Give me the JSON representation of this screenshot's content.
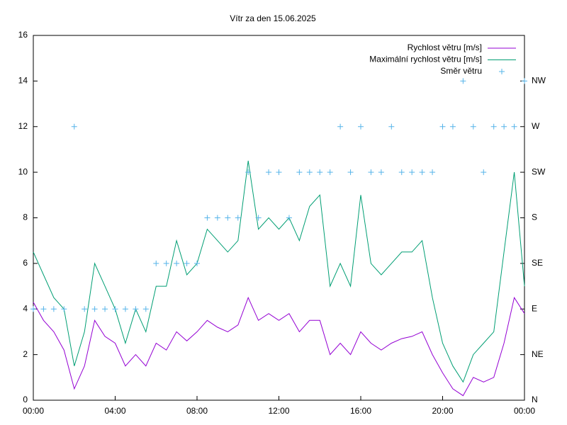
{
  "chart_data": {
    "type": "line",
    "title": "Vítr za den 15.06.2025",
    "x": [
      0,
      0.5,
      1,
      1.5,
      2,
      2.5,
      3,
      3.5,
      4,
      4.5,
      5,
      5.5,
      6,
      6.5,
      7,
      7.5,
      8,
      8.5,
      9,
      9.5,
      10,
      10.5,
      11,
      11.5,
      12,
      12.5,
      13,
      13.5,
      14,
      14.5,
      15,
      15.5,
      16,
      16.5,
      17,
      17.5,
      18,
      18.5,
      19,
      19.5,
      20,
      20.5,
      21,
      21.5,
      22,
      22.5,
      23,
      23.5,
      24
    ],
    "series": [
      {
        "name": "Rychlost větru [m/s]",
        "color": "#9400d3",
        "type": "line",
        "values": [
          4.3,
          3.5,
          3.0,
          2.2,
          0.5,
          1.5,
          3.5,
          2.8,
          2.5,
          1.5,
          2.0,
          1.5,
          2.5,
          2.2,
          3.0,
          2.6,
          3.0,
          3.5,
          3.2,
          3.0,
          3.3,
          4.5,
          3.5,
          3.8,
          3.5,
          3.8,
          3.0,
          3.5,
          3.5,
          2.0,
          2.5,
          2.0,
          3.0,
          2.5,
          2.2,
          2.5,
          2.7,
          2.8,
          3.0,
          2.0,
          1.2,
          0.5,
          0.2,
          1.0,
          0.8,
          1.0,
          2.5,
          4.5,
          3.8
        ]
      },
      {
        "name": "Maximální rychlost větru [m/s]",
        "color": "#009e73",
        "type": "line",
        "values": [
          6.5,
          5.5,
          4.5,
          4.0,
          1.5,
          3.0,
          6.0,
          5.0,
          4.0,
          2.5,
          4.0,
          3.0,
          5.0,
          5.0,
          7.0,
          5.5,
          6.0,
          7.5,
          7.0,
          6.5,
          7.0,
          10.5,
          7.5,
          8.0,
          7.5,
          8.0,
          7.0,
          8.5,
          9.0,
          5.0,
          6.0,
          5.0,
          9.0,
          6.0,
          5.5,
          6.0,
          6.5,
          6.5,
          7.0,
          4.5,
          2.5,
          1.5,
          0.8,
          2.0,
          2.5,
          3.0,
          6.5,
          10.0,
          5.0
        ]
      },
      {
        "name": "Směr větru",
        "color": "#56b4e9",
        "type": "scatter",
        "axis": "y2",
        "values": [
          4,
          4,
          4,
          4,
          12,
          4,
          4,
          4,
          4,
          4,
          4,
          4,
          6,
          6,
          6,
          6,
          6,
          8,
          8,
          8,
          8,
          10,
          8,
          10,
          10,
          8,
          10,
          10,
          10,
          10,
          12,
          10,
          12,
          10,
          10,
          12,
          10,
          10,
          10,
          10,
          12,
          12,
          14,
          12,
          10,
          12,
          12,
          12,
          14
        ]
      }
    ],
    "xlim": [
      0,
      24
    ],
    "xticks": [
      {
        "value": 0,
        "label": "00:00"
      },
      {
        "value": 4,
        "label": "04:00"
      },
      {
        "value": 8,
        "label": "08:00"
      },
      {
        "value": 12,
        "label": "12:00"
      },
      {
        "value": 16,
        "label": "16:00"
      },
      {
        "value": 20,
        "label": "20:00"
      },
      {
        "value": 24,
        "label": "00:00"
      }
    ],
    "ylim": [
      0,
      16
    ],
    "yticks": [
      0,
      2,
      4,
      6,
      8,
      10,
      12,
      14,
      16
    ],
    "y2lim": [
      0,
      16
    ],
    "y2ticks": [
      {
        "value": 0,
        "label": "N"
      },
      {
        "value": 2,
        "label": "NE"
      },
      {
        "value": 4,
        "label": "E"
      },
      {
        "value": 6,
        "label": "SE"
      },
      {
        "value": 8,
        "label": "S"
      },
      {
        "value": 10,
        "label": "SW"
      },
      {
        "value": 12,
        "label": "W"
      },
      {
        "value": 14,
        "label": "NW"
      }
    ],
    "grid": false,
    "legend": "top-right"
  }
}
